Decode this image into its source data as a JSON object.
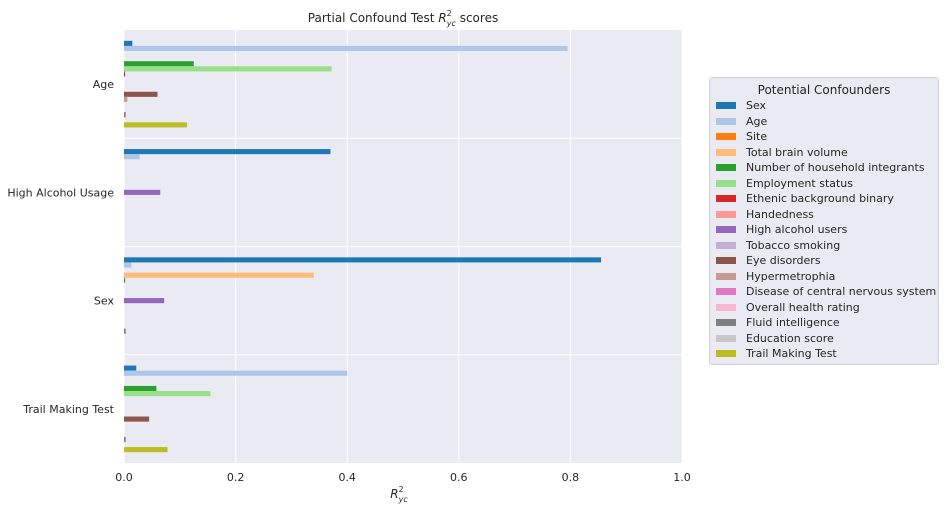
{
  "chart_data": {
    "type": "bar",
    "orientation": "horizontal",
    "title_prefix": "Partial Confound Test ",
    "title_math": "R",
    "title_sup": "2",
    "title_sub": "yc",
    "title_suffix": " scores",
    "xlabel_math": "R",
    "xlabel_sup": "2",
    "xlabel_sub": "yc",
    "xlim": [
      0,
      1.0
    ],
    "xticks": [
      "0.0",
      "0.2",
      "0.4",
      "0.6",
      "0.8",
      "1.0"
    ],
    "categories": [
      "Age",
      "High Alcohol Usage",
      "Sex",
      "Trail Making Test"
    ],
    "legend_title": "Potential Confounders",
    "legend_position": "right",
    "grid": true,
    "series": [
      {
        "name": "Sex",
        "color": "#1f77b4",
        "values": [
          0.015,
          0.37,
          0.855,
          0.022
        ]
      },
      {
        "name": "Age",
        "color": "#aec7e8",
        "values": [
          0.795,
          0.028,
          0.013,
          0.4
        ]
      },
      {
        "name": "Site",
        "color": "#ff7f0e",
        "values": [
          0.0,
          0.0,
          0.0,
          0.0
        ]
      },
      {
        "name": "Total brain volume",
        "color": "#ffbb78",
        "values": [
          0.0,
          0.0,
          0.34,
          0.0
        ]
      },
      {
        "name": "Number of household integrants",
        "color": "#2ca02c",
        "values": [
          0.125,
          0.0,
          0.002,
          0.058
        ]
      },
      {
        "name": "Employment status",
        "color": "#98df8a",
        "values": [
          0.372,
          0.0,
          0.0,
          0.155
        ]
      },
      {
        "name": "Ethenic background binary",
        "color": "#d62728",
        "values": [
          0.002,
          0.0,
          0.0,
          0.0
        ]
      },
      {
        "name": "Handedness",
        "color": "#ff9896",
        "values": [
          0.0,
          0.0,
          0.0,
          0.0
        ]
      },
      {
        "name": "High alcohol users",
        "color": "#9467bd",
        "values": [
          0.0,
          0.065,
          0.072,
          0.0
        ]
      },
      {
        "name": "Tobacco smoking",
        "color": "#c5b0d5",
        "values": [
          0.0,
          0.0,
          0.0,
          0.0
        ]
      },
      {
        "name": "Eye disorders",
        "color": "#8c564b",
        "values": [
          0.06,
          0.0,
          0.0,
          0.045
        ]
      },
      {
        "name": "Hypermetrophia",
        "color": "#c49c94",
        "values": [
          0.006,
          0.0,
          0.0,
          0.0
        ]
      },
      {
        "name": "Disease of central nervous system",
        "color": "#e377c2",
        "values": [
          0.0,
          0.0,
          0.0,
          0.0
        ]
      },
      {
        "name": "Overall health rating",
        "color": "#f7b6d2",
        "values": [
          0.0,
          0.0,
          0.0,
          0.0
        ]
      },
      {
        "name": "Fluid intelligence",
        "color": "#7f7f7f",
        "values": [
          0.003,
          0.0,
          0.003,
          0.003
        ]
      },
      {
        "name": "Education score",
        "color": "#c7c7c7",
        "values": [
          0.0,
          0.0,
          0.0,
          0.0
        ]
      },
      {
        "name": "Trail Making Test",
        "color": "#bcbd22",
        "values": [
          0.113,
          0.0,
          0.0,
          0.078
        ]
      }
    ]
  }
}
